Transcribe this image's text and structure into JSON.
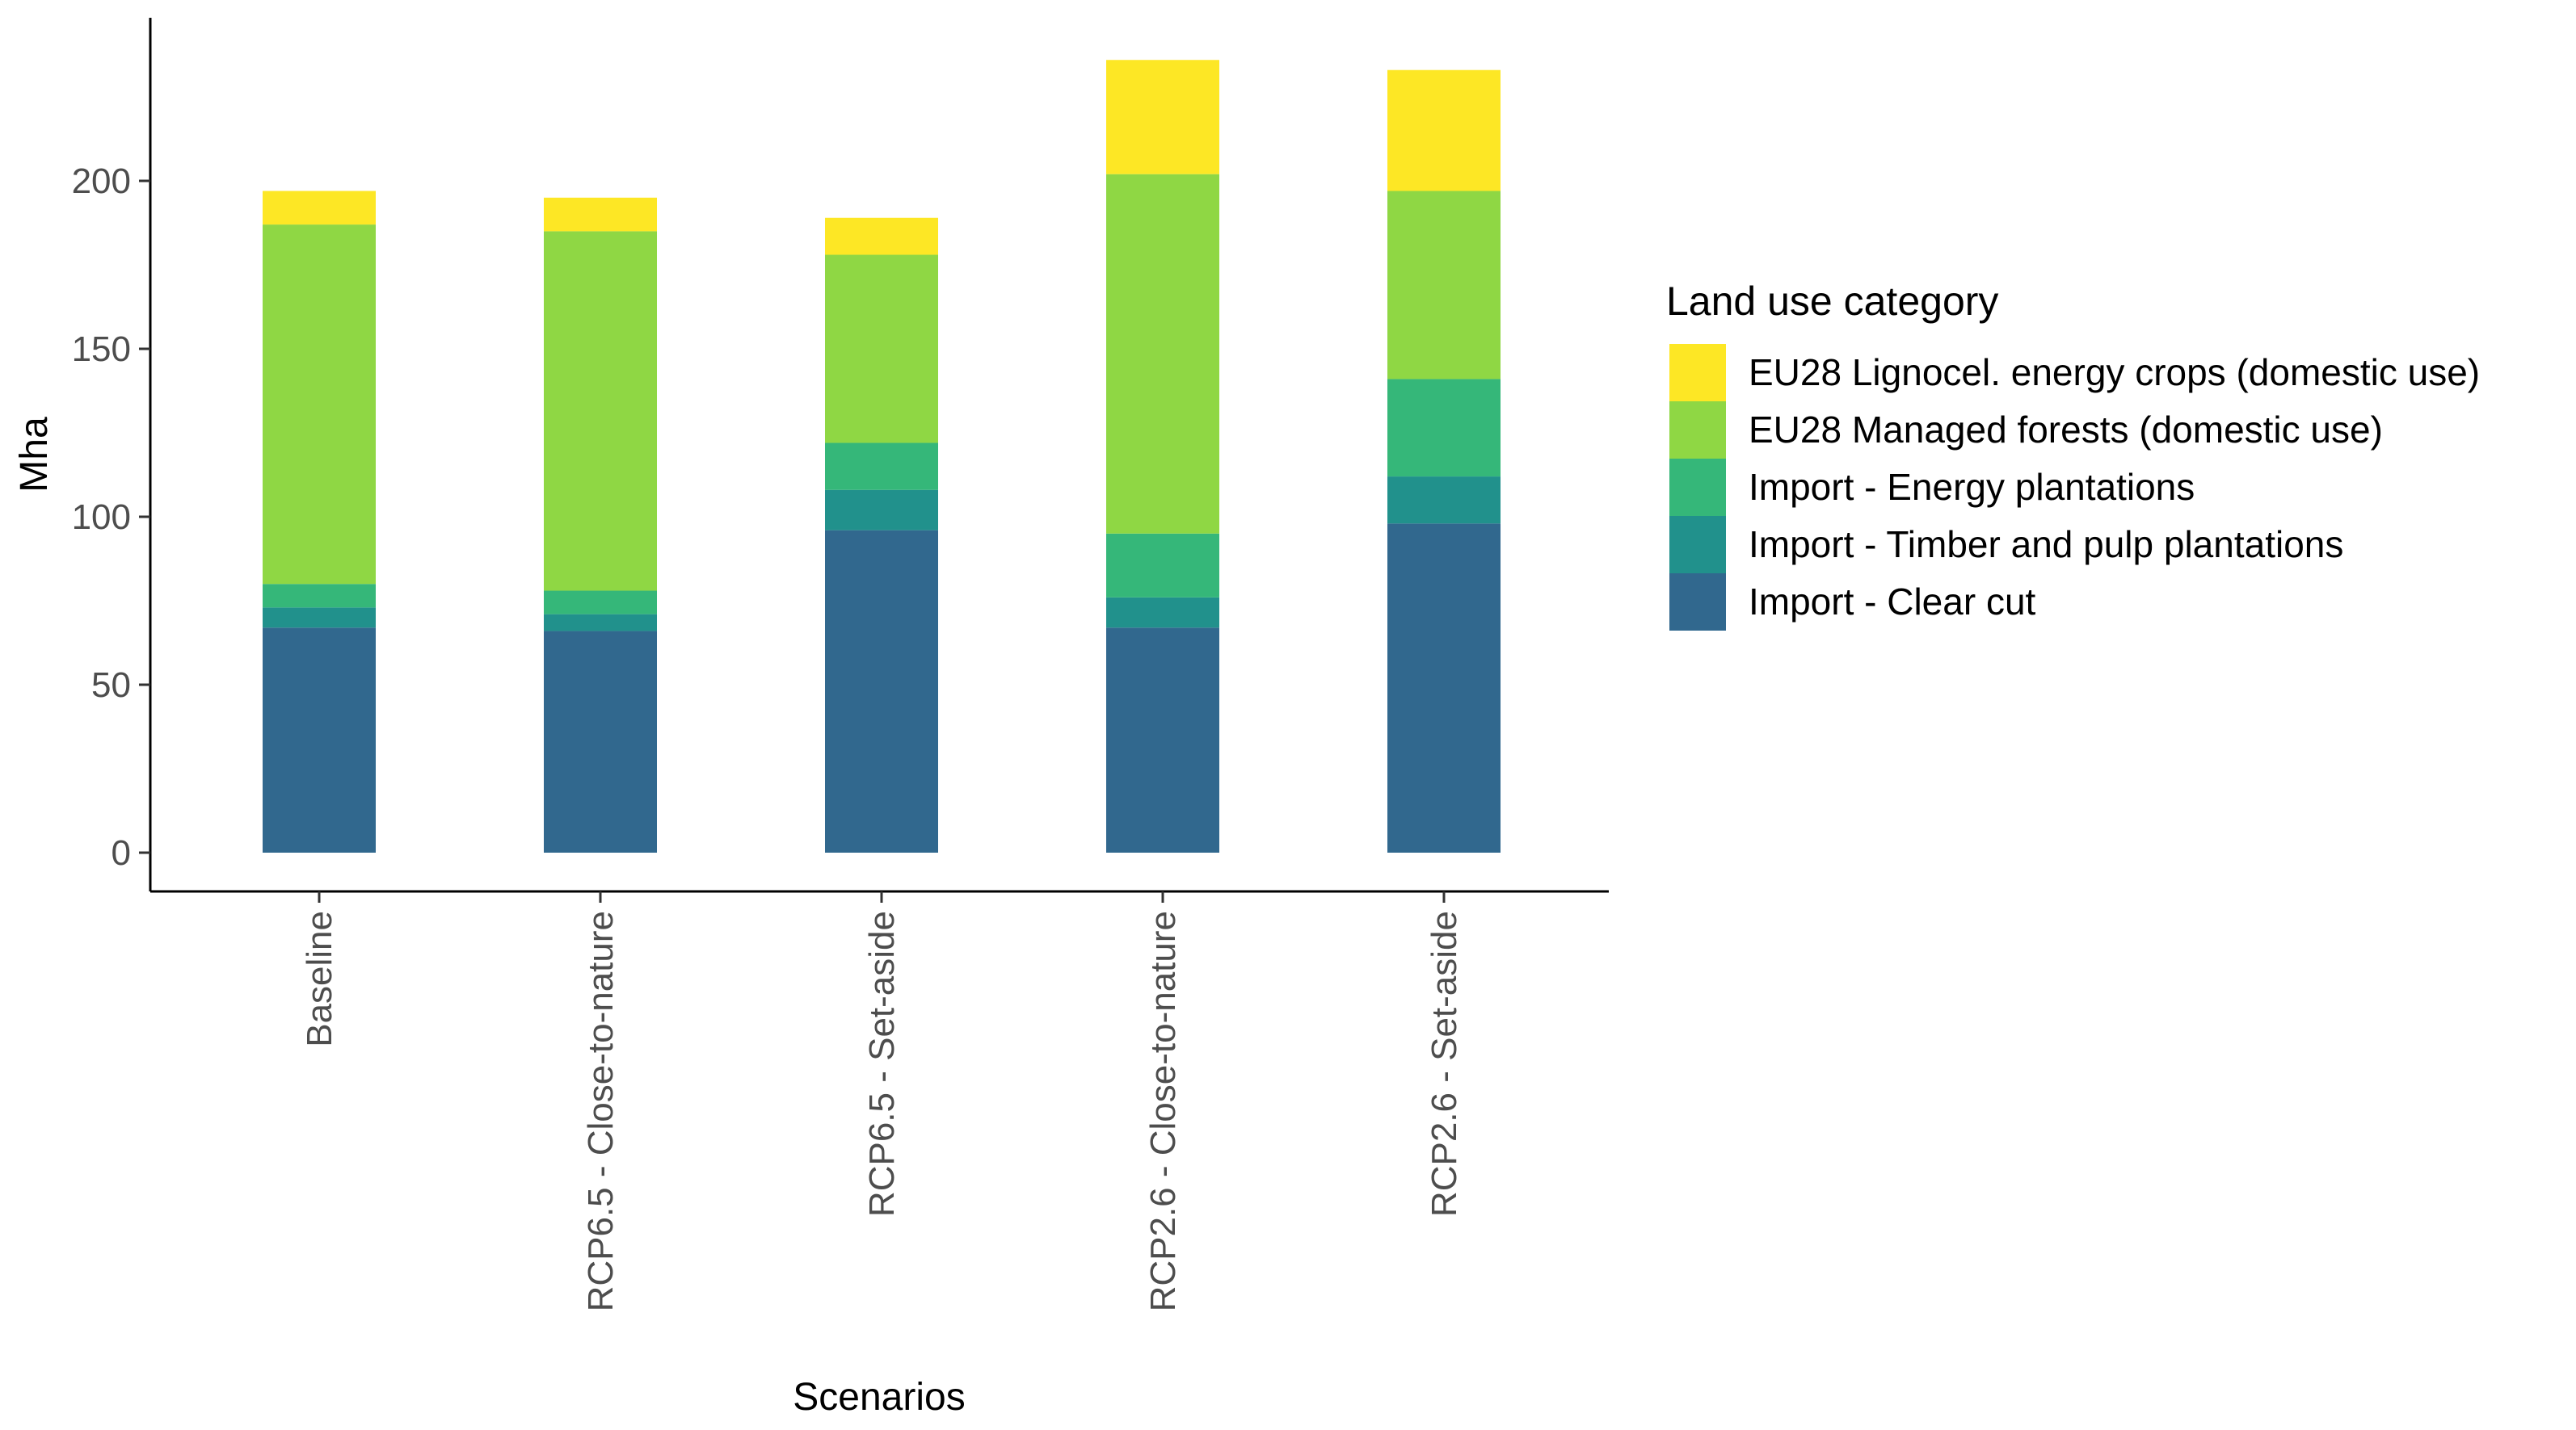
{
  "chart_data": {
    "type": "bar",
    "stacked": true,
    "xlabel": "Scenarios",
    "ylabel": "Mha",
    "ylim": [
      0,
      250
    ],
    "yticks": [
      0,
      50,
      100,
      150,
      200
    ],
    "grid": false,
    "legend_position": "right",
    "categories": [
      "Baseline",
      "RCP6.5 - Close-to-nature",
      "RCP6.5 - Set-aside",
      "RCP2.6 - Close-to-nature",
      "RCP2.6 - Set-aside"
    ],
    "legend": {
      "title": "Land use category",
      "entries": [
        "EU28 Lignocel. energy crops (domestic use)",
        "EU28 Managed forests (domestic use)",
        "Import - Energy plantations",
        "Import - Timber and pulp plantations",
        "Import - Clear cut"
      ]
    },
    "series": [
      {
        "name": "Import - Clear cut",
        "color": "#31688e",
        "values": [
          67,
          66,
          96,
          67,
          98
        ]
      },
      {
        "name": "Import - Timber and pulp plantations",
        "color": "#21918c",
        "values": [
          6,
          5,
          12,
          9,
          14
        ]
      },
      {
        "name": "Import - Energy plantations",
        "color": "#35b779",
        "values": [
          7,
          7,
          14,
          19,
          29
        ]
      },
      {
        "name": "EU28 Managed forests (domestic use)",
        "color": "#8fd744",
        "values": [
          107,
          107,
          56,
          107,
          56
        ]
      },
      {
        "name": "EU28 Lignocel. energy crops (domestic use)",
        "color": "#fde725",
        "values": [
          10,
          10,
          11,
          34,
          36
        ]
      }
    ]
  }
}
